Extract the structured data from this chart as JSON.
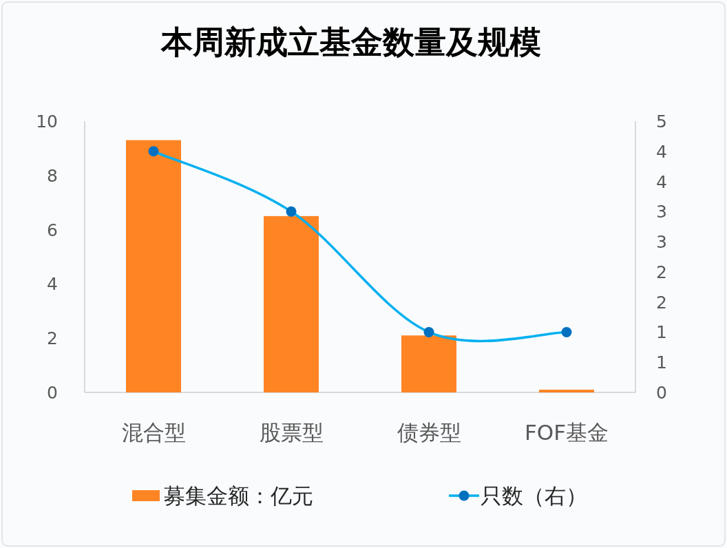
{
  "chart_data": {
    "type": "bar",
    "title": "本周新成立基金数量及规模",
    "categories": [
      "混合型",
      "股票型",
      "债券型",
      "FOF基金"
    ],
    "series": [
      {
        "name": "募集金额：亿元",
        "color": "#ff8424",
        "values": [
          9.3,
          6.5,
          2.1,
          0.1
        ]
      },
      {
        "name": "只数（右）",
        "type": "line",
        "axis": "y2",
        "color": "#00b0f0",
        "colors": [
          "#0070c0",
          "#0070c0",
          "#0070c0",
          "#0070c0"
        ],
        "marker": "circle",
        "line_style": "solid",
        "values": [
          4,
          3,
          1,
          1
        ]
      }
    ],
    "ylim": [
      0,
      10
    ],
    "yticks": [
      0,
      2,
      4,
      6,
      8,
      10
    ],
    "y2lim": [
      0,
      4.5
    ],
    "y2ticks": [
      0,
      {
        "value": 0.5,
        "label": "1"
      },
      1,
      {
        "value": 1.5,
        "label": "2"
      },
      2,
      {
        "value": 2.5,
        "label": "3"
      },
      3,
      {
        "value": 3.5,
        "label": "4"
      },
      4,
      {
        "value": 4.5,
        "label": "5"
      }
    ],
    "legend": "bottom"
  }
}
